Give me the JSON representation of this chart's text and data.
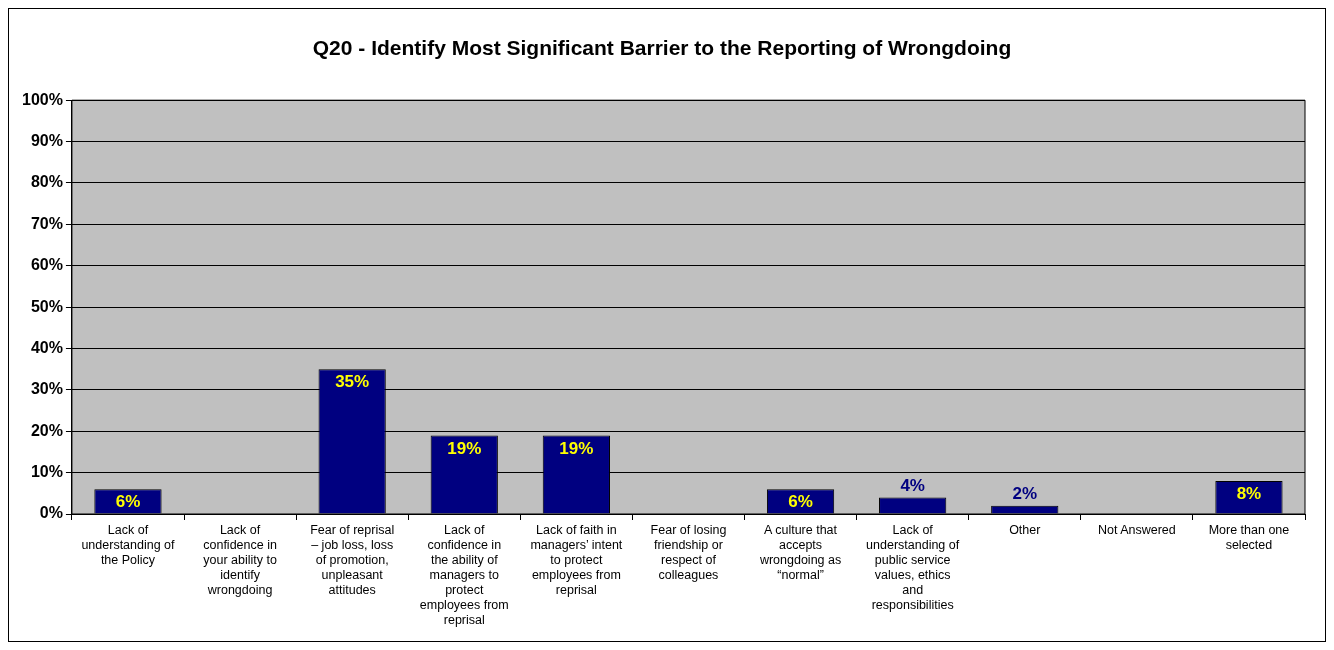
{
  "chart_data": {
    "type": "bar",
    "title": "Q20 - Identify Most Significant Barrier to the Reporting of Wrongdoing",
    "categories": [
      "Lack of understanding of the Policy",
      "Lack of confidence in your ability to identify wrongdoing",
      "Fear of reprisal – job loss, loss of promotion, unpleasant attitudes",
      "Lack of confidence in the ability of managers to protect employees from reprisal",
      "Lack of faith in managers’ intent to protect employees from reprisal",
      "Fear of losing friendship or respect of colleagues",
      "A culture that accepts wrongdoing as “normal”",
      "Lack of understanding of public service values, ethics and responsibilities",
      "Other",
      "Not Answered",
      "More than one selected"
    ],
    "values": [
      6,
      0,
      35,
      19,
      19,
      0,
      6,
      4,
      2,
      0,
      8
    ],
    "value_labels": [
      "6%",
      null,
      "35%",
      "19%",
      "19%",
      null,
      "6%",
      "4%",
      "2%",
      null,
      "8%"
    ],
    "color": "#000080",
    "ylim": [
      0,
      100
    ],
    "yticks": [
      {
        "value": 0,
        "label": "0%"
      },
      {
        "value": 10,
        "label": "10%"
      },
      {
        "value": 20,
        "label": "20%"
      },
      {
        "value": 30,
        "label": "30%"
      },
      {
        "value": 40,
        "label": "40%"
      },
      {
        "value": 50,
        "label": "50%"
      },
      {
        "value": 60,
        "label": "60%"
      },
      {
        "value": 70,
        "label": "70%"
      },
      {
        "value": 80,
        "label": "80%"
      },
      {
        "value": 90,
        "label": "90%"
      },
      {
        "value": 100,
        "label": "100%"
      }
    ],
    "grid": "y",
    "legend": false
  }
}
